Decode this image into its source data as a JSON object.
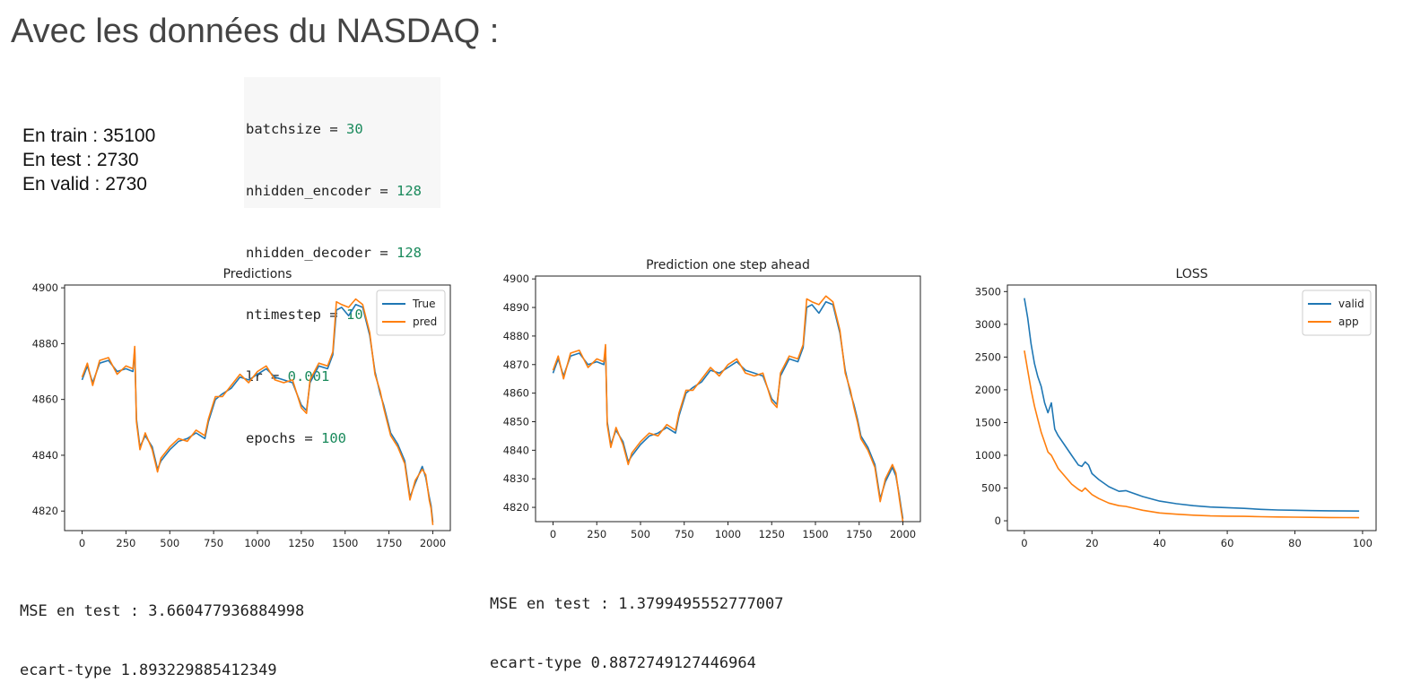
{
  "page": {
    "title": "Avec les données du NASDAQ :",
    "stats": [
      {
        "label": "En train : 35100"
      },
      {
        "label": "En test :  2730"
      },
      {
        "label": "En valid : 2730"
      }
    ],
    "code": [
      {
        "name": "batchsize",
        "value": "30"
      },
      {
        "name": "nhidden_encoder",
        "value": "128"
      },
      {
        "name": "nhidden_decoder",
        "value": "128"
      },
      {
        "name": "ntimestep",
        "value": "10"
      },
      {
        "name": "lr",
        "value": "0.001"
      },
      {
        "name": "epochs",
        "value": "100"
      }
    ],
    "metrics": [
      {
        "mse": "MSE en test : 3.660477936884998",
        "std": "ecart-type 1.893229885412349"
      },
      {
        "mse": "MSE en test : 1.3799495552777007",
        "std": "ecart-type 0.8872749127446964"
      }
    ]
  },
  "colors": {
    "blue": "#1f77b4",
    "orange": "#ff7f0e"
  },
  "chart_data": [
    {
      "type": "line",
      "title": "Predictions",
      "xlim": [
        -100,
        2100
      ],
      "ylim": [
        4813,
        4901
      ],
      "xticks": [
        0,
        250,
        500,
        750,
        1000,
        1250,
        1500,
        1750,
        2000
      ],
      "yticks": [
        4820,
        4840,
        4860,
        4880,
        4900
      ],
      "legend": "top-right",
      "series": [
        {
          "name": "True",
          "color": "#1f77b4",
          "x": [
            0,
            30,
            60,
            100,
            150,
            200,
            250,
            290,
            300,
            310,
            330,
            360,
            400,
            430,
            450,
            500,
            550,
            600,
            650,
            700,
            720,
            760,
            800,
            850,
            900,
            950,
            1000,
            1050,
            1100,
            1150,
            1200,
            1250,
            1280,
            1300,
            1350,
            1400,
            1430,
            1450,
            1480,
            1520,
            1560,
            1600,
            1640,
            1670,
            1700,
            1720,
            1740,
            1760,
            1800,
            1840,
            1870,
            1900,
            1940,
            1960,
            1980,
            1990,
            2000
          ],
          "y": [
            4867,
            4872,
            4866,
            4873,
            4874,
            4870,
            4871,
            4870,
            4878,
            4853,
            4843,
            4847,
            4843,
            4835,
            4838,
            4842,
            4845,
            4846,
            4848,
            4846,
            4852,
            4860,
            4862,
            4864,
            4868,
            4867,
            4869,
            4871,
            4868,
            4867,
            4866,
            4858,
            4856,
            4866,
            4872,
            4871,
            4876,
            4892,
            4893,
            4890,
            4894,
            4893,
            4883,
            4870,
            4862,
            4858,
            4853,
            4848,
            4844,
            4838,
            4825,
            4830,
            4836,
            4832,
            4825,
            4822,
            4816
          ]
        },
        {
          "name": "pred",
          "color": "#ff7f0e",
          "x": [
            0,
            30,
            60,
            100,
            150,
            200,
            250,
            290,
            300,
            310,
            330,
            360,
            400,
            430,
            450,
            500,
            550,
            600,
            650,
            700,
            720,
            760,
            800,
            850,
            900,
            950,
            1000,
            1050,
            1100,
            1150,
            1200,
            1250,
            1280,
            1300,
            1350,
            1400,
            1430,
            1450,
            1480,
            1520,
            1560,
            1600,
            1640,
            1670,
            1700,
            1720,
            1740,
            1760,
            1800,
            1840,
            1870,
            1900,
            1940,
            1960,
            1980,
            1990,
            2000
          ],
          "y": [
            4868,
            4873,
            4865,
            4874,
            4875,
            4869,
            4872,
            4871,
            4879,
            4852,
            4842,
            4848,
            4842,
            4834,
            4839,
            4843,
            4846,
            4845,
            4849,
            4847,
            4853,
            4861,
            4861,
            4865,
            4869,
            4866,
            4870,
            4872,
            4867,
            4866,
            4867,
            4857,
            4855,
            4867,
            4873,
            4872,
            4877,
            4895,
            4894,
            4893,
            4896,
            4894,
            4884,
            4869,
            4863,
            4857,
            4852,
            4847,
            4843,
            4837,
            4824,
            4831,
            4835,
            4833,
            4824,
            4821,
            4815
          ]
        }
      ]
    },
    {
      "type": "line",
      "title": "Prediction one step ahead",
      "xlim": [
        -100,
        2100
      ],
      "ylim": [
        4815,
        4901
      ],
      "xticks": [
        0,
        250,
        500,
        750,
        1000,
        1250,
        1500,
        1750,
        2000
      ],
      "yticks": [
        4820,
        4830,
        4840,
        4850,
        4860,
        4870,
        4880,
        4890,
        4900
      ],
      "series": [
        {
          "name": "",
          "color": "#1f77b4",
          "x": [
            0,
            30,
            60,
            100,
            150,
            200,
            250,
            290,
            300,
            310,
            330,
            360,
            400,
            430,
            450,
            500,
            550,
            600,
            650,
            700,
            720,
            760,
            800,
            850,
            900,
            950,
            1000,
            1050,
            1100,
            1150,
            1200,
            1250,
            1280,
            1300,
            1350,
            1400,
            1430,
            1450,
            1480,
            1520,
            1560,
            1600,
            1640,
            1670,
            1700,
            1720,
            1740,
            1760,
            1800,
            1840,
            1870,
            1900,
            1940,
            1960,
            1980,
            1990,
            2000
          ],
          "y": [
            4867,
            4872,
            4866,
            4873,
            4874,
            4870,
            4871,
            4870,
            4876,
            4850,
            4842,
            4847,
            4843,
            4836,
            4838,
            4842,
            4845,
            4846,
            4848,
            4846,
            4852,
            4860,
            4862,
            4864,
            4868,
            4867,
            4869,
            4871,
            4868,
            4867,
            4866,
            4858,
            4856,
            4866,
            4872,
            4871,
            4876,
            4890,
            4891,
            4888,
            4892,
            4891,
            4881,
            4868,
            4860,
            4856,
            4851,
            4845,
            4841,
            4835,
            4823,
            4829,
            4834,
            4831,
            4824,
            4820,
            4816
          ]
        },
        {
          "name": "",
          "color": "#ff7f0e",
          "x": [
            0,
            30,
            60,
            100,
            150,
            200,
            250,
            290,
            300,
            310,
            330,
            360,
            400,
            430,
            450,
            500,
            550,
            600,
            650,
            700,
            720,
            760,
            800,
            850,
            900,
            950,
            1000,
            1050,
            1100,
            1150,
            1200,
            1250,
            1280,
            1300,
            1350,
            1400,
            1430,
            1450,
            1480,
            1520,
            1560,
            1600,
            1640,
            1670,
            1700,
            1720,
            1740,
            1760,
            1800,
            1840,
            1870,
            1900,
            1940,
            1960,
            1980,
            1990,
            2000
          ],
          "y": [
            4868,
            4873,
            4865,
            4874,
            4875,
            4869,
            4872,
            4871,
            4877,
            4849,
            4841,
            4848,
            4842,
            4835,
            4839,
            4843,
            4846,
            4845,
            4849,
            4847,
            4853,
            4861,
            4861,
            4865,
            4869,
            4866,
            4870,
            4872,
            4867,
            4866,
            4867,
            4857,
            4855,
            4867,
            4873,
            4872,
            4877,
            4893,
            4892,
            4891,
            4894,
            4892,
            4882,
            4867,
            4861,
            4855,
            4850,
            4844,
            4840,
            4834,
            4822,
            4830,
            4835,
            4832,
            4823,
            4819,
            4815
          ]
        }
      ]
    },
    {
      "type": "line",
      "title": "LOSS",
      "xlim": [
        -5,
        104
      ],
      "ylim": [
        -150,
        3600
      ],
      "xticks": [
        0,
        20,
        40,
        60,
        80,
        100
      ],
      "yticks": [
        0,
        500,
        1000,
        1500,
        2000,
        2500,
        3000,
        3500
      ],
      "legend": "top-right",
      "series": [
        {
          "name": "valid",
          "color": "#1f77b4",
          "x": [
            0,
            1,
            2,
            3,
            4,
            5,
            6,
            7,
            8,
            9,
            10,
            12,
            14,
            16,
            17,
            18,
            19,
            20,
            22,
            25,
            28,
            30,
            35,
            40,
            45,
            50,
            55,
            60,
            65,
            70,
            75,
            80,
            85,
            90,
            95,
            99
          ],
          "y": [
            3400,
            3100,
            2700,
            2400,
            2200,
            2050,
            1800,
            1650,
            1800,
            1400,
            1300,
            1150,
            1000,
            850,
            830,
            900,
            850,
            720,
            630,
            520,
            450,
            460,
            370,
            300,
            260,
            230,
            210,
            200,
            190,
            175,
            165,
            160,
            155,
            152,
            150,
            148
          ]
        },
        {
          "name": "app",
          "color": "#ff7f0e",
          "x": [
            0,
            1,
            2,
            3,
            4,
            5,
            6,
            7,
            8,
            9,
            10,
            12,
            14,
            16,
            17,
            18,
            19,
            20,
            22,
            25,
            28,
            30,
            35,
            40,
            45,
            50,
            55,
            60,
            65,
            70,
            75,
            80,
            85,
            90,
            95,
            99
          ],
          "y": [
            2600,
            2300,
            2000,
            1750,
            1550,
            1350,
            1200,
            1050,
            1000,
            900,
            800,
            680,
            560,
            480,
            450,
            500,
            450,
            400,
            340,
            270,
            230,
            220,
            160,
            120,
            100,
            85,
            75,
            70,
            68,
            62,
            58,
            55,
            52,
            50,
            48,
            47
          ]
        }
      ]
    }
  ]
}
